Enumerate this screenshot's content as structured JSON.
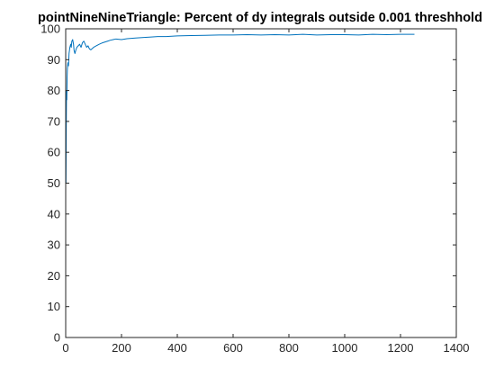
{
  "chart_data": {
    "type": "line",
    "title": "pointNineNineTriangle: Percent of dy integrals outside 0.001 threshhold",
    "xlabel": "",
    "ylabel": "",
    "xlim": [
      0,
      1400
    ],
    "ylim": [
      0,
      100
    ],
    "x_ticks": [
      0,
      200,
      400,
      600,
      800,
      1000,
      1200,
      1400
    ],
    "y_ticks": [
      0,
      10,
      20,
      30,
      40,
      50,
      60,
      70,
      80,
      90,
      100
    ],
    "grid": false,
    "legend": "none",
    "series": [
      {
        "color": "#0072bd",
        "x": [
          1,
          2,
          3,
          4,
          5,
          6,
          8,
          10,
          12,
          15,
          18,
          20,
          22,
          25,
          28,
          30,
          33,
          36,
          40,
          45,
          50,
          55,
          60,
          65,
          70,
          75,
          80,
          85,
          90,
          100,
          110,
          120,
          130,
          140,
          150,
          160,
          170,
          180,
          200,
          220,
          250,
          280,
          300,
          330,
          360,
          400,
          450,
          500,
          550,
          600,
          650,
          700,
          750,
          800,
          850,
          900,
          950,
          1000,
          1050,
          1100,
          1150,
          1200,
          1250
        ],
        "y": [
          50,
          67,
          80,
          77,
          84,
          87,
          89,
          88,
          92,
          94,
          95,
          94,
          96,
          96.5,
          95,
          93,
          92,
          93,
          94,
          94.5,
          95,
          94,
          95.5,
          96,
          95,
          94,
          94.5,
          93.5,
          93.2,
          94,
          94.5,
          95,
          95.4,
          95.7,
          96,
          96.3,
          96.5,
          96.7,
          96.5,
          96.8,
          97,
          97.2,
          97.3,
          97.5,
          97.5,
          97.7,
          97.8,
          97.9,
          98,
          98,
          98.1,
          98,
          98.1,
          98,
          98.2,
          98,
          98.1,
          98.1,
          98,
          98.2,
          98.1,
          98.2,
          98.2
        ]
      }
    ]
  }
}
